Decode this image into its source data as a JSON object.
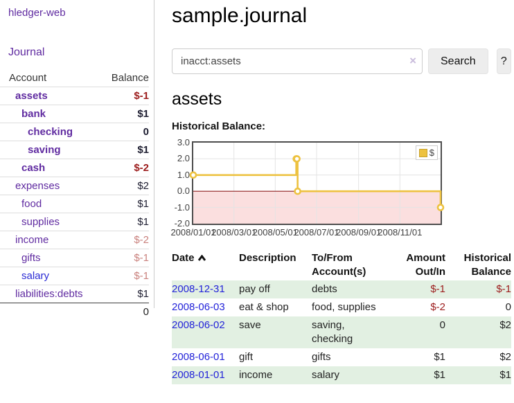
{
  "colors": {
    "purple_link": "#5f2aa0",
    "blue_link": "#2a2ad4",
    "date_link": "#2323d9",
    "negative_strong": "#9c1c1c",
    "negative_faded": "#c9807c",
    "row_shade_green": "#e2f0e2",
    "chart_series_yellow": "#edc240",
    "chart_zero_line": "#8f1f1f",
    "chart_negative_fill": "#fbdfdf",
    "chart_grid": "#e4e4e4",
    "chart_border": "#4d4d4d"
  },
  "app": {
    "brand": "hledger-web",
    "nav_journal": "Journal"
  },
  "sidebar": {
    "header": {
      "account": "Account",
      "balance": "Balance"
    },
    "accounts": [
      {
        "name": "assets",
        "depth": 1,
        "bold": true,
        "balance": "$-1",
        "neg": "strong"
      },
      {
        "name": "bank",
        "depth": 2,
        "bold": true,
        "balance": "$1",
        "neg": "none"
      },
      {
        "name": "checking",
        "depth": 3,
        "bold": true,
        "balance": "0",
        "neg": "none"
      },
      {
        "name": "saving",
        "depth": 3,
        "bold": true,
        "balance": "$1",
        "neg": "none"
      },
      {
        "name": "cash",
        "depth": 2,
        "bold": true,
        "balance": "$-2",
        "neg": "strong"
      },
      {
        "name": "expenses",
        "depth": 1,
        "bold": false,
        "balance": "$2",
        "neg": "none"
      },
      {
        "name": "food",
        "depth": 2,
        "bold": false,
        "balance": "$1",
        "neg": "none"
      },
      {
        "name": "supplies",
        "depth": 2,
        "bold": false,
        "balance": "$1",
        "neg": "none"
      },
      {
        "name": "income",
        "depth": 1,
        "bold": false,
        "balance": "$-2",
        "neg": "faded"
      },
      {
        "name": "gifts",
        "depth": 2,
        "bold": false,
        "balance": "$-1",
        "neg": "faded"
      },
      {
        "name": "salary",
        "depth": 2,
        "bold": false,
        "balance": "$-1",
        "neg": "faded",
        "link_color": "blue"
      },
      {
        "name": "liabilities:debts",
        "depth": 1,
        "bold": false,
        "balance": "$1",
        "neg": "none"
      }
    ],
    "total": "0"
  },
  "header": {
    "title": "sample.journal"
  },
  "search": {
    "value": "inacct:assets",
    "clear_glyph": "×",
    "button_label": "Search",
    "help_label": "?"
  },
  "account_page": {
    "heading": "assets",
    "chart_label": "Historical Balance:"
  },
  "chart_data": {
    "type": "line",
    "title": "Historical Balance:",
    "step": true,
    "series": [
      {
        "name": "$",
        "points": [
          [
            "2008/01/01",
            1
          ],
          [
            "2008/06/01",
            2
          ],
          [
            "2008/06/02",
            2
          ],
          [
            "2008/06/03",
            0
          ],
          [
            "2008/12/31",
            -1
          ]
        ]
      }
    ],
    "x_range": [
      "2008/01/01",
      "2008/12/31"
    ],
    "ylim": [
      -2,
      3
    ],
    "y_ticks": [
      "3.0",
      "2.0",
      "1.0",
      "0.0",
      "-1.0",
      "-2.0"
    ],
    "x_ticks": [
      "2008/01/01",
      "2008/03/01",
      "2008/05/01",
      "2008/07/01",
      "2008/09/01",
      "2008/11/01"
    ],
    "grid": true,
    "legend_position": "top-right",
    "legend_label": "$"
  },
  "register": {
    "columns": [
      {
        "l1": "Date",
        "l2": "",
        "align": "left",
        "sort": true
      },
      {
        "l1": "Description",
        "l2": "",
        "align": "left"
      },
      {
        "l1": "To/From",
        "l2": "Account(s)",
        "align": "left"
      },
      {
        "l1": "Amount",
        "l2": "Out/In",
        "align": "right"
      },
      {
        "l1": "Historical",
        "l2": "Balance",
        "align": "right"
      }
    ],
    "rows": [
      {
        "date": "2008-12-31",
        "description": "pay off",
        "accounts": "debts",
        "amount": "$-1",
        "balance": "$-1",
        "shade": true
      },
      {
        "date": "2008-06-03",
        "description": "eat & shop",
        "accounts": "food, supplies",
        "amount": "$-2",
        "balance": "0",
        "shade": false
      },
      {
        "date": "2008-06-02",
        "description": "save",
        "accounts": "saving, checking",
        "amount": "0",
        "balance": "$2",
        "shade": true
      },
      {
        "date": "2008-06-01",
        "description": "gift",
        "accounts": "gifts",
        "amount": "$1",
        "balance": "$2",
        "shade": false
      },
      {
        "date": "2008-01-01",
        "description": "income",
        "accounts": "salary",
        "amount": "$1",
        "balance": "$1",
        "shade": true
      }
    ]
  }
}
